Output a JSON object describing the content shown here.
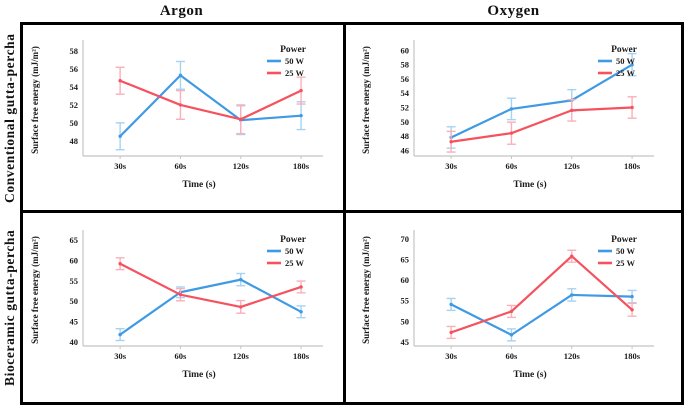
{
  "figure": {
    "column_headers": [
      "Argon",
      "Oxygen"
    ],
    "row_headers": [
      "Conventional gutta-percha",
      "Bioceramic gutta-percha"
    ]
  },
  "colors": {
    "blue": "#3f9ae3",
    "blue_light": "#a6d3f3",
    "red": "#f6525e",
    "red_light": "#f9b0ba",
    "axis": "#c4c4c4",
    "border": "#000000",
    "text": "#1a1a1a"
  },
  "chart_data": [
    {
      "type": "line",
      "row": "Conventional gutta-percha",
      "column": "Argon",
      "xlabel": "Time (s)",
      "ylabel": "Surface free energy (mJ/m²)",
      "legend_title": "Power",
      "categories": [
        "30s",
        "60s",
        "120s",
        "180s"
      ],
      "yticks": [
        48,
        50,
        52,
        54,
        56,
        58
      ],
      "ylim": [
        46.3,
        58.8
      ],
      "grid": false,
      "legend_position": "top-right",
      "series": [
        {
          "name": "50 W",
          "color": "blue",
          "values": [
            48.5,
            55.3,
            50.3,
            50.8
          ],
          "errors": [
            1.5,
            1.55,
            1.6,
            1.55
          ]
        },
        {
          "name": "25 W",
          "color": "red",
          "values": [
            54.7,
            52.0,
            50.4,
            53.6
          ],
          "errors": [
            1.5,
            1.6,
            1.6,
            1.5
          ]
        }
      ]
    },
    {
      "type": "line",
      "row": "Conventional gutta-percha",
      "column": "Oxygen",
      "xlabel": "Time (s)",
      "ylabel": "Surface free energy (mJ/m²)",
      "legend_title": "Power",
      "categories": [
        "30s",
        "60s",
        "120s",
        "180s"
      ],
      "yticks": [
        46,
        48,
        50,
        52,
        54,
        56,
        58,
        60
      ],
      "ylim": [
        45.2,
        60.9
      ],
      "grid": false,
      "legend_position": "top-right",
      "series": [
        {
          "name": "50 W",
          "color": "blue",
          "values": [
            47.8,
            51.8,
            53.0,
            58.0
          ],
          "errors": [
            1.5,
            1.5,
            1.5,
            1.55
          ]
        },
        {
          "name": "25 W",
          "color": "red",
          "values": [
            47.2,
            48.4,
            51.6,
            52.0
          ],
          "errors": [
            1.45,
            1.55,
            1.5,
            1.5
          ]
        }
      ]
    },
    {
      "type": "line",
      "row": "Bioceramic gutta-percha",
      "column": "Argon",
      "xlabel": "Time (s)",
      "ylabel": "Surface free energy (mJ/m²)",
      "legend_title": "Power",
      "categories": [
        "30s",
        "60s",
        "120s",
        "180s"
      ],
      "yticks": [
        40,
        45,
        50,
        55,
        60,
        65
      ],
      "ylim": [
        39.0,
        66.5
      ],
      "grid": false,
      "legend_position": "top-right",
      "series": [
        {
          "name": "50 W",
          "color": "blue",
          "values": [
            41.8,
            52.2,
            55.3,
            47.4
          ],
          "errors": [
            1.45,
            1.3,
            1.5,
            1.45
          ]
        },
        {
          "name": "25 W",
          "color": "red",
          "values": [
            59.2,
            51.6,
            48.6,
            53.5
          ],
          "errors": [
            1.45,
            1.5,
            1.55,
            1.45
          ]
        }
      ]
    },
    {
      "type": "line",
      "row": "Bioceramic gutta-percha",
      "column": "Oxygen",
      "xlabel": "Time (s)",
      "ylabel": "Surface free energy (mJ/m²)",
      "legend_title": "Power",
      "categories": [
        "30s",
        "60s",
        "120s",
        "180s"
      ],
      "yticks": [
        45,
        50,
        55,
        60,
        65,
        70
      ],
      "ylim": [
        44.0,
        71.2
      ],
      "grid": false,
      "legend_position": "top-right",
      "series": [
        {
          "name": "50 W",
          "color": "blue",
          "values": [
            54.1,
            46.7,
            56.4,
            56.0
          ],
          "errors": [
            1.45,
            1.45,
            1.5,
            1.5
          ]
        },
        {
          "name": "25 W",
          "color": "red",
          "values": [
            47.3,
            52.4,
            65.8,
            52.8
          ],
          "errors": [
            1.45,
            1.45,
            1.45,
            1.55
          ]
        }
      ]
    }
  ]
}
